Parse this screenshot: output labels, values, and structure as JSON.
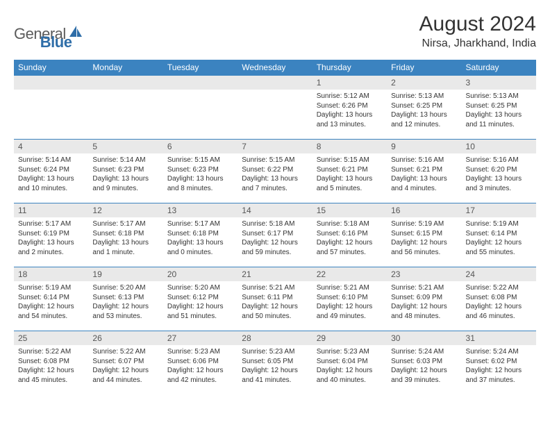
{
  "logo": {
    "text1": "General",
    "text2": "Blue"
  },
  "title": {
    "month": "August 2024",
    "location": "Nirsa, Jharkhand, India"
  },
  "colors": {
    "header_bg": "#3b83c0",
    "header_text": "#ffffff",
    "daynum_bg": "#e9e9e9",
    "border": "#3b83c0",
    "logo_general": "#5b5b5b",
    "logo_blue": "#2f6ea8"
  },
  "typography": {
    "month_fontsize": 30,
    "location_fontsize": 16,
    "dayheader_fontsize": 12,
    "daynum_fontsize": 12,
    "cell_fontsize": 10
  },
  "dayHeaders": [
    "Sunday",
    "Monday",
    "Tuesday",
    "Wednesday",
    "Thursday",
    "Friday",
    "Saturday"
  ],
  "weeks": [
    [
      {
        "n": "",
        "sr": "",
        "ss": "",
        "dl1": "",
        "dl2": ""
      },
      {
        "n": "",
        "sr": "",
        "ss": "",
        "dl1": "",
        "dl2": ""
      },
      {
        "n": "",
        "sr": "",
        "ss": "",
        "dl1": "",
        "dl2": ""
      },
      {
        "n": "",
        "sr": "",
        "ss": "",
        "dl1": "",
        "dl2": ""
      },
      {
        "n": "1",
        "sr": "Sunrise: 5:12 AM",
        "ss": "Sunset: 6:26 PM",
        "dl1": "Daylight: 13 hours",
        "dl2": "and 13 minutes."
      },
      {
        "n": "2",
        "sr": "Sunrise: 5:13 AM",
        "ss": "Sunset: 6:25 PM",
        "dl1": "Daylight: 13 hours",
        "dl2": "and 12 minutes."
      },
      {
        "n": "3",
        "sr": "Sunrise: 5:13 AM",
        "ss": "Sunset: 6:25 PM",
        "dl1": "Daylight: 13 hours",
        "dl2": "and 11 minutes."
      }
    ],
    [
      {
        "n": "4",
        "sr": "Sunrise: 5:14 AM",
        "ss": "Sunset: 6:24 PM",
        "dl1": "Daylight: 13 hours",
        "dl2": "and 10 minutes."
      },
      {
        "n": "5",
        "sr": "Sunrise: 5:14 AM",
        "ss": "Sunset: 6:23 PM",
        "dl1": "Daylight: 13 hours",
        "dl2": "and 9 minutes."
      },
      {
        "n": "6",
        "sr": "Sunrise: 5:15 AM",
        "ss": "Sunset: 6:23 PM",
        "dl1": "Daylight: 13 hours",
        "dl2": "and 8 minutes."
      },
      {
        "n": "7",
        "sr": "Sunrise: 5:15 AM",
        "ss": "Sunset: 6:22 PM",
        "dl1": "Daylight: 13 hours",
        "dl2": "and 7 minutes."
      },
      {
        "n": "8",
        "sr": "Sunrise: 5:15 AM",
        "ss": "Sunset: 6:21 PM",
        "dl1": "Daylight: 13 hours",
        "dl2": "and 5 minutes."
      },
      {
        "n": "9",
        "sr": "Sunrise: 5:16 AM",
        "ss": "Sunset: 6:21 PM",
        "dl1": "Daylight: 13 hours",
        "dl2": "and 4 minutes."
      },
      {
        "n": "10",
        "sr": "Sunrise: 5:16 AM",
        "ss": "Sunset: 6:20 PM",
        "dl1": "Daylight: 13 hours",
        "dl2": "and 3 minutes."
      }
    ],
    [
      {
        "n": "11",
        "sr": "Sunrise: 5:17 AM",
        "ss": "Sunset: 6:19 PM",
        "dl1": "Daylight: 13 hours",
        "dl2": "and 2 minutes."
      },
      {
        "n": "12",
        "sr": "Sunrise: 5:17 AM",
        "ss": "Sunset: 6:18 PM",
        "dl1": "Daylight: 13 hours",
        "dl2": "and 1 minute."
      },
      {
        "n": "13",
        "sr": "Sunrise: 5:17 AM",
        "ss": "Sunset: 6:18 PM",
        "dl1": "Daylight: 13 hours",
        "dl2": "and 0 minutes."
      },
      {
        "n": "14",
        "sr": "Sunrise: 5:18 AM",
        "ss": "Sunset: 6:17 PM",
        "dl1": "Daylight: 12 hours",
        "dl2": "and 59 minutes."
      },
      {
        "n": "15",
        "sr": "Sunrise: 5:18 AM",
        "ss": "Sunset: 6:16 PM",
        "dl1": "Daylight: 12 hours",
        "dl2": "and 57 minutes."
      },
      {
        "n": "16",
        "sr": "Sunrise: 5:19 AM",
        "ss": "Sunset: 6:15 PM",
        "dl1": "Daylight: 12 hours",
        "dl2": "and 56 minutes."
      },
      {
        "n": "17",
        "sr": "Sunrise: 5:19 AM",
        "ss": "Sunset: 6:14 PM",
        "dl1": "Daylight: 12 hours",
        "dl2": "and 55 minutes."
      }
    ],
    [
      {
        "n": "18",
        "sr": "Sunrise: 5:19 AM",
        "ss": "Sunset: 6:14 PM",
        "dl1": "Daylight: 12 hours",
        "dl2": "and 54 minutes."
      },
      {
        "n": "19",
        "sr": "Sunrise: 5:20 AM",
        "ss": "Sunset: 6:13 PM",
        "dl1": "Daylight: 12 hours",
        "dl2": "and 53 minutes."
      },
      {
        "n": "20",
        "sr": "Sunrise: 5:20 AM",
        "ss": "Sunset: 6:12 PM",
        "dl1": "Daylight: 12 hours",
        "dl2": "and 51 minutes."
      },
      {
        "n": "21",
        "sr": "Sunrise: 5:21 AM",
        "ss": "Sunset: 6:11 PM",
        "dl1": "Daylight: 12 hours",
        "dl2": "and 50 minutes."
      },
      {
        "n": "22",
        "sr": "Sunrise: 5:21 AM",
        "ss": "Sunset: 6:10 PM",
        "dl1": "Daylight: 12 hours",
        "dl2": "and 49 minutes."
      },
      {
        "n": "23",
        "sr": "Sunrise: 5:21 AM",
        "ss": "Sunset: 6:09 PM",
        "dl1": "Daylight: 12 hours",
        "dl2": "and 48 minutes."
      },
      {
        "n": "24",
        "sr": "Sunrise: 5:22 AM",
        "ss": "Sunset: 6:08 PM",
        "dl1": "Daylight: 12 hours",
        "dl2": "and 46 minutes."
      }
    ],
    [
      {
        "n": "25",
        "sr": "Sunrise: 5:22 AM",
        "ss": "Sunset: 6:08 PM",
        "dl1": "Daylight: 12 hours",
        "dl2": "and 45 minutes."
      },
      {
        "n": "26",
        "sr": "Sunrise: 5:22 AM",
        "ss": "Sunset: 6:07 PM",
        "dl1": "Daylight: 12 hours",
        "dl2": "and 44 minutes."
      },
      {
        "n": "27",
        "sr": "Sunrise: 5:23 AM",
        "ss": "Sunset: 6:06 PM",
        "dl1": "Daylight: 12 hours",
        "dl2": "and 42 minutes."
      },
      {
        "n": "28",
        "sr": "Sunrise: 5:23 AM",
        "ss": "Sunset: 6:05 PM",
        "dl1": "Daylight: 12 hours",
        "dl2": "and 41 minutes."
      },
      {
        "n": "29",
        "sr": "Sunrise: 5:23 AM",
        "ss": "Sunset: 6:04 PM",
        "dl1": "Daylight: 12 hours",
        "dl2": "and 40 minutes."
      },
      {
        "n": "30",
        "sr": "Sunrise: 5:24 AM",
        "ss": "Sunset: 6:03 PM",
        "dl1": "Daylight: 12 hours",
        "dl2": "and 39 minutes."
      },
      {
        "n": "31",
        "sr": "Sunrise: 5:24 AM",
        "ss": "Sunset: 6:02 PM",
        "dl1": "Daylight: 12 hours",
        "dl2": "and 37 minutes."
      }
    ]
  ]
}
